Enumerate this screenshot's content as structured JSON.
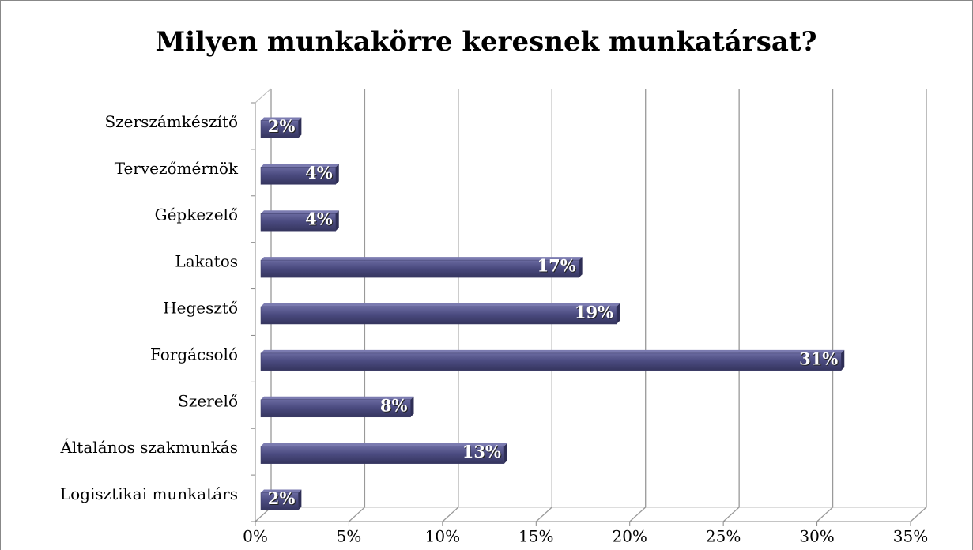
{
  "chart_data": {
    "type": "bar",
    "orientation": "horizontal",
    "title": "Milyen munkakörre keresnek munkatársat?",
    "categories": [
      "Szerszámkészítő",
      "Tervezőmérnök",
      "Gépkezelő",
      "Lakatos",
      "Hegesztő",
      "Forgácsoló",
      "Szerelő",
      "Általános szakmunkás",
      "Logisztikai munkatárs"
    ],
    "values": [
      2,
      4,
      4,
      17,
      19,
      31,
      8,
      13,
      2
    ],
    "value_labels": [
      "2%",
      "4%",
      "4%",
      "17%",
      "19%",
      "31%",
      "8%",
      "13%",
      "2%"
    ],
    "color": "#4b4b80",
    "xlim": [
      0,
      35
    ],
    "xticks": [
      {
        "value": 0,
        "label": "0%"
      },
      {
        "value": 5,
        "label": "5%"
      },
      {
        "value": 10,
        "label": "10%"
      },
      {
        "value": 15,
        "label": "15%"
      },
      {
        "value": 20,
        "label": "20%"
      },
      {
        "value": 25,
        "label": "25%"
      },
      {
        "value": 30,
        "label": "30%"
      },
      {
        "value": 35,
        "label": "35%"
      }
    ],
    "grid": true
  }
}
